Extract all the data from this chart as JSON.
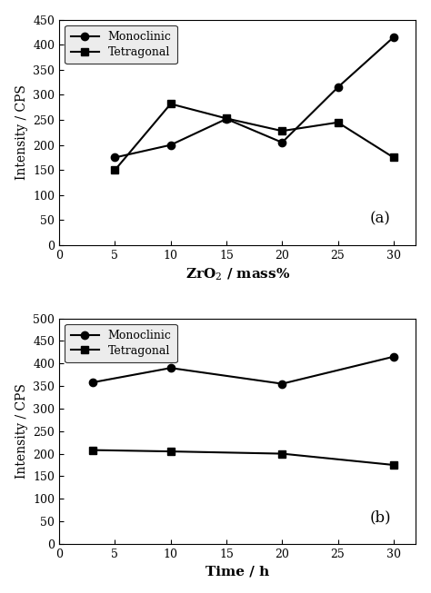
{
  "chart_a": {
    "x": [
      5,
      10,
      15,
      20,
      25,
      30
    ],
    "monoclinic": [
      175,
      200,
      252,
      205,
      315,
      415
    ],
    "tetragonal": [
      150,
      282,
      253,
      228,
      245,
      175
    ],
    "xlabel": "ZrO$_2$ / mass%",
    "ylabel": "Intensity / CPS",
    "xlim": [
      0,
      32
    ],
    "ylim": [
      0,
      450
    ],
    "yticks": [
      0,
      50,
      100,
      150,
      200,
      250,
      300,
      350,
      400,
      450
    ],
    "xticks": [
      0,
      5,
      10,
      15,
      20,
      25,
      30
    ],
    "label": "(a)"
  },
  "chart_b": {
    "x": [
      3,
      10,
      20,
      30
    ],
    "monoclinic": [
      358,
      390,
      355,
      415
    ],
    "tetragonal": [
      208,
      205,
      200,
      175
    ],
    "xlabel": "Time / h",
    "ylabel": "Intensity / CPS",
    "xlim": [
      0,
      32
    ],
    "ylim": [
      0,
      500
    ],
    "yticks": [
      0,
      50,
      100,
      150,
      200,
      250,
      300,
      350,
      400,
      450,
      500
    ],
    "xticks": [
      0,
      5,
      10,
      15,
      20,
      25,
      30
    ],
    "label": "(b)"
  },
  "line_color": "#000000",
  "marker_monoclinic": "o",
  "marker_tetragonal": "s",
  "marker_size": 6,
  "linewidth": 1.5,
  "legend_monoclinic": "Monoclinic",
  "legend_tetragonal": "Tetragonal",
  "figsize": [
    4.74,
    6.53
  ],
  "dpi": 100,
  "bg_color": "#ffffff"
}
